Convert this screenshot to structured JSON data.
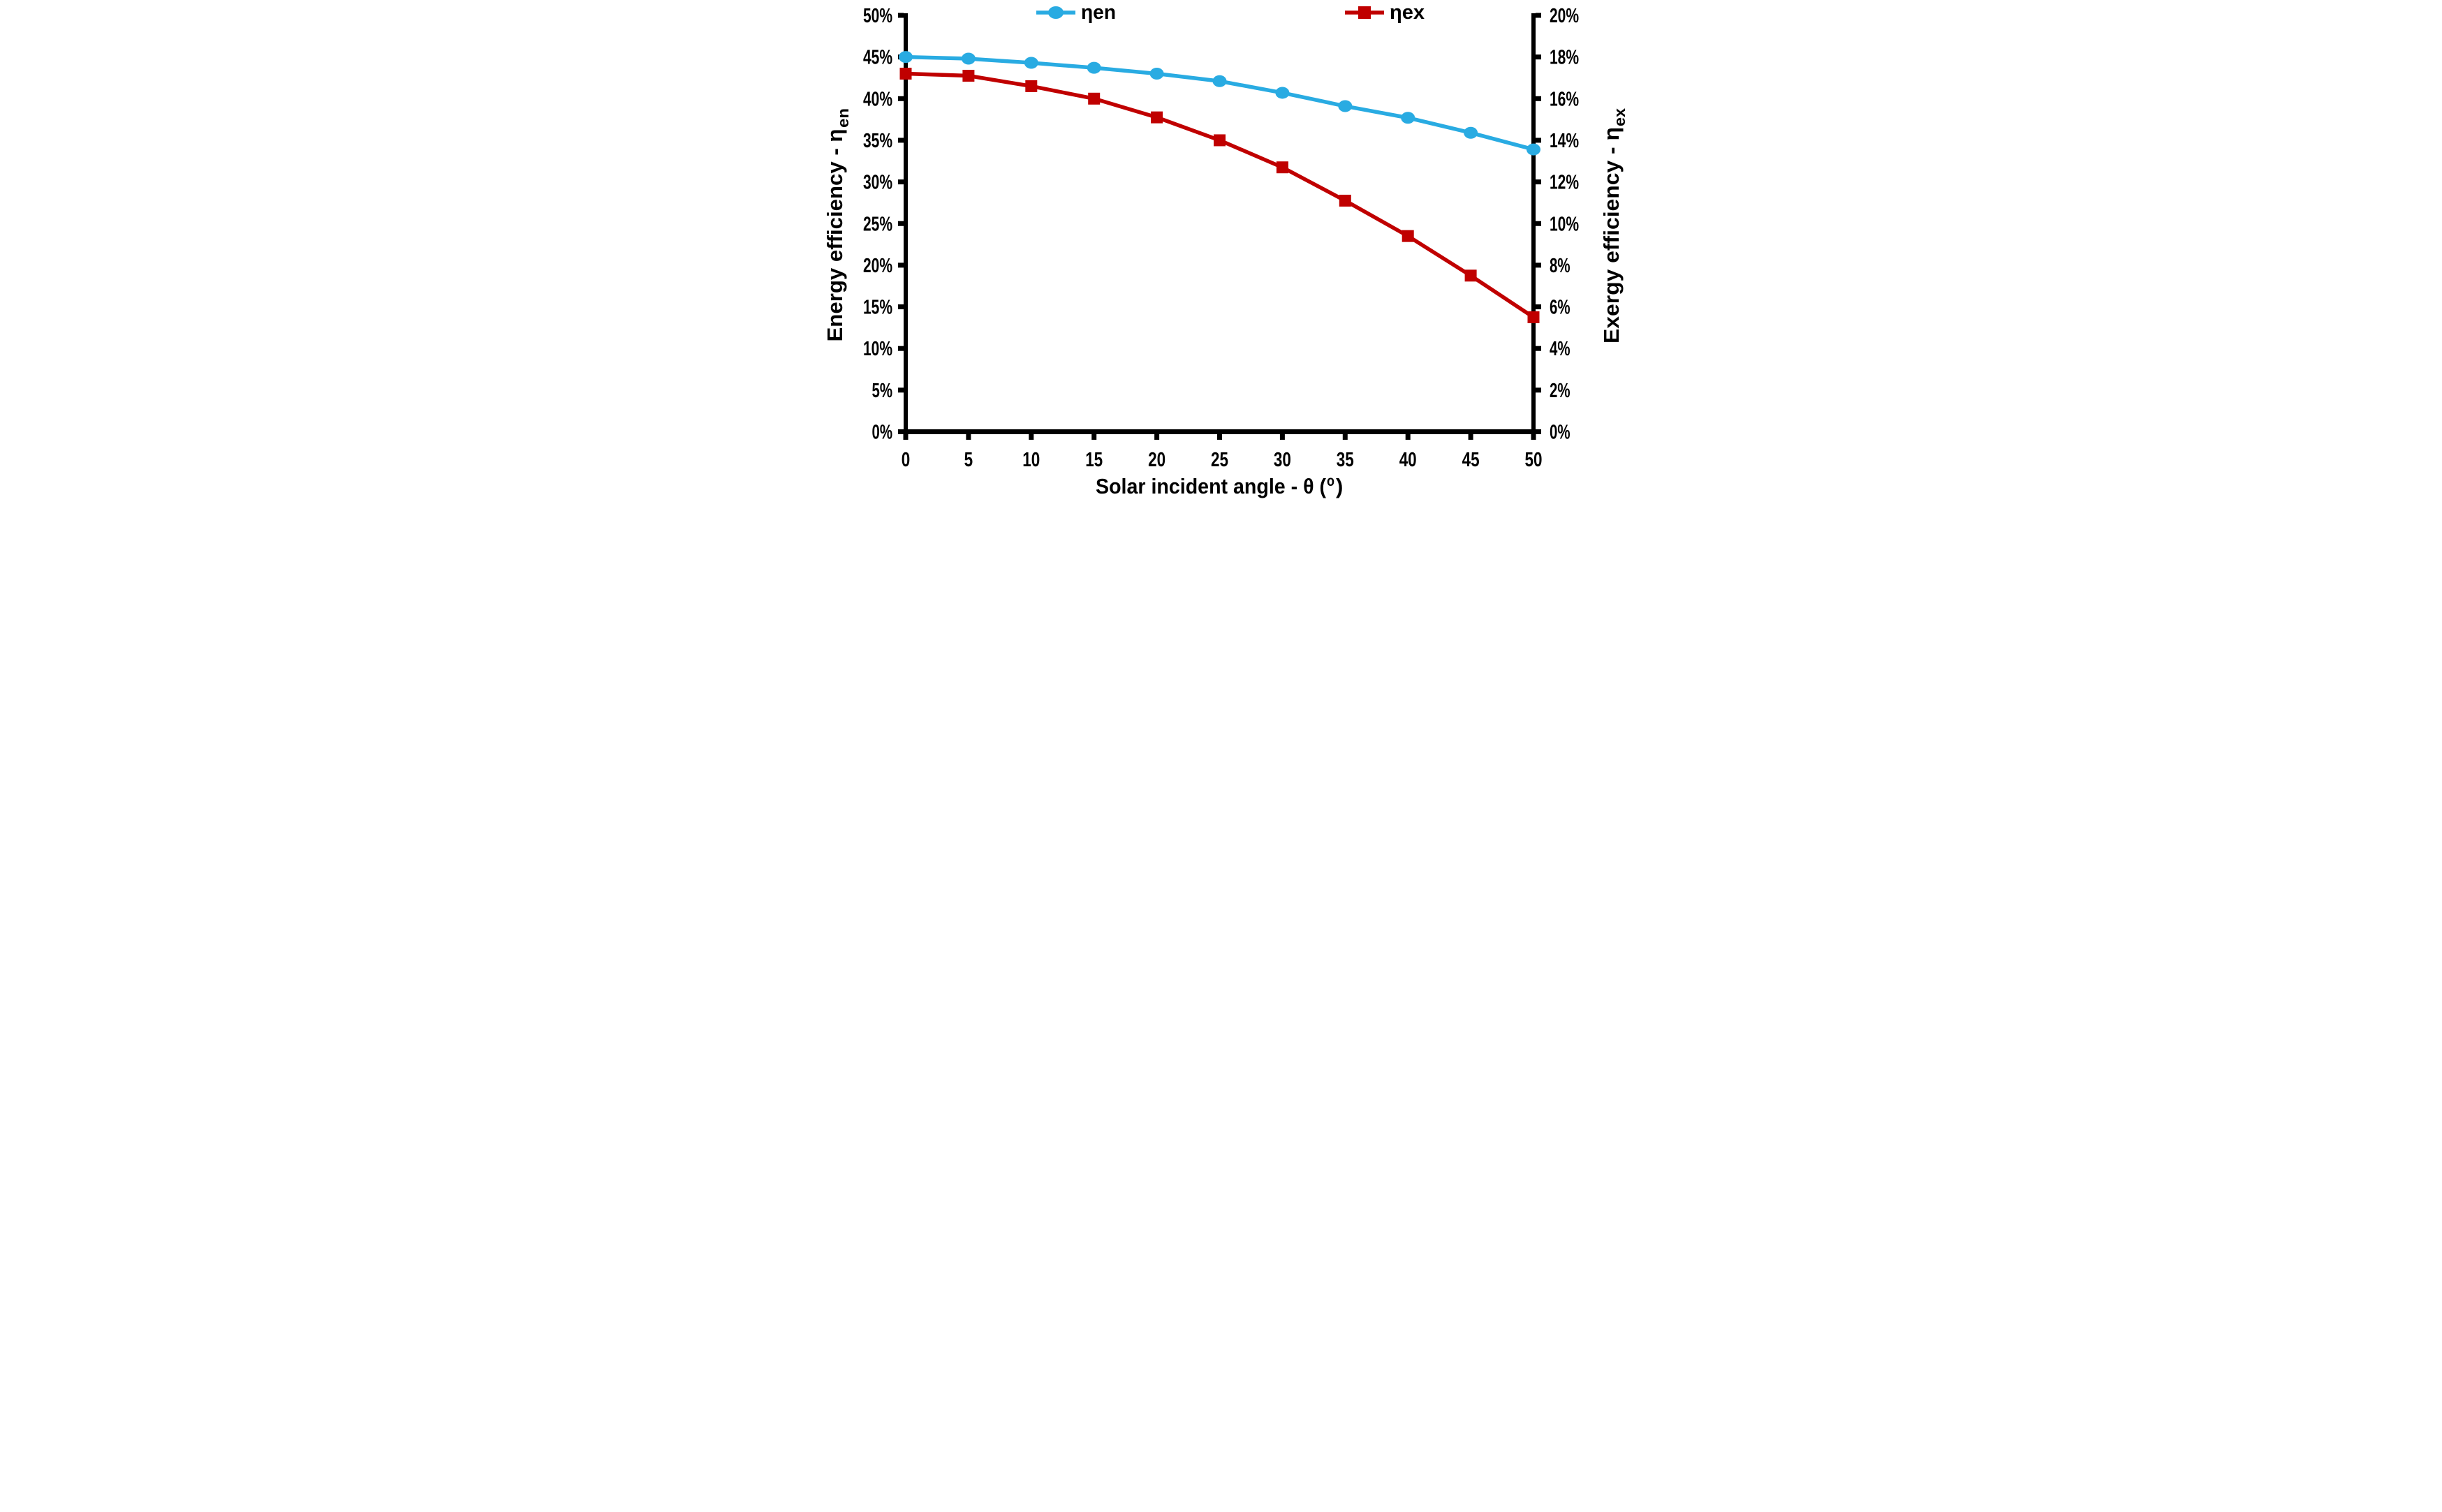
{
  "chart_data": {
    "type": "line",
    "x": [
      0,
      5,
      10,
      15,
      20,
      25,
      30,
      35,
      40,
      45,
      50
    ],
    "x_axis": {
      "title_main": "Solar incident angle - θ (",
      "title_sup": "o",
      "title_close": ")",
      "tick_labels": [
        "0",
        "5",
        "10",
        "15",
        "20",
        "25",
        "30",
        "35",
        "40",
        "45",
        "50"
      ],
      "min": 0,
      "max": 50,
      "step": 5
    },
    "axes": {
      "left": {
        "title_main": "Energy efficiency - η",
        "title_sub": "en",
        "min": 0,
        "max": 50,
        "step": 5,
        "tick_labels": [
          "0%",
          "5%",
          "10%",
          "15%",
          "20%",
          "25%",
          "30%",
          "35%",
          "40%",
          "45%",
          "50%"
        ]
      },
      "right": {
        "title_main": "Exergy efficiency - η",
        "title_sub": "ex",
        "min": 0,
        "max": 20,
        "step": 2,
        "tick_labels": [
          "0%",
          "2%",
          "4%",
          "6%",
          "8%",
          "10%",
          "12%",
          "14%",
          "16%",
          "18%",
          "20%"
        ]
      }
    },
    "series": [
      {
        "key": "eta-en",
        "name": "ηen",
        "axis": "left",
        "marker": "circle",
        "color": "#29ABE2",
        "values": [
          45.0,
          44.8,
          44.3,
          43.7,
          43.0,
          42.1,
          40.7,
          39.1,
          37.7,
          35.9,
          33.9
        ]
      },
      {
        "key": "eta-ex",
        "name": "ηex",
        "axis": "right",
        "marker": "square",
        "color": "#C00000",
        "values": [
          17.2,
          17.1,
          16.6,
          16.0,
          15.1,
          14.0,
          12.7,
          11.1,
          9.4,
          7.5,
          5.5
        ]
      }
    ],
    "legend": [
      {
        "label": "ηen"
      },
      {
        "label": "ηex"
      }
    ],
    "grid": "off",
    "legend_position": "top",
    "background": "#FFFFFF",
    "axis_color": "#000000"
  }
}
